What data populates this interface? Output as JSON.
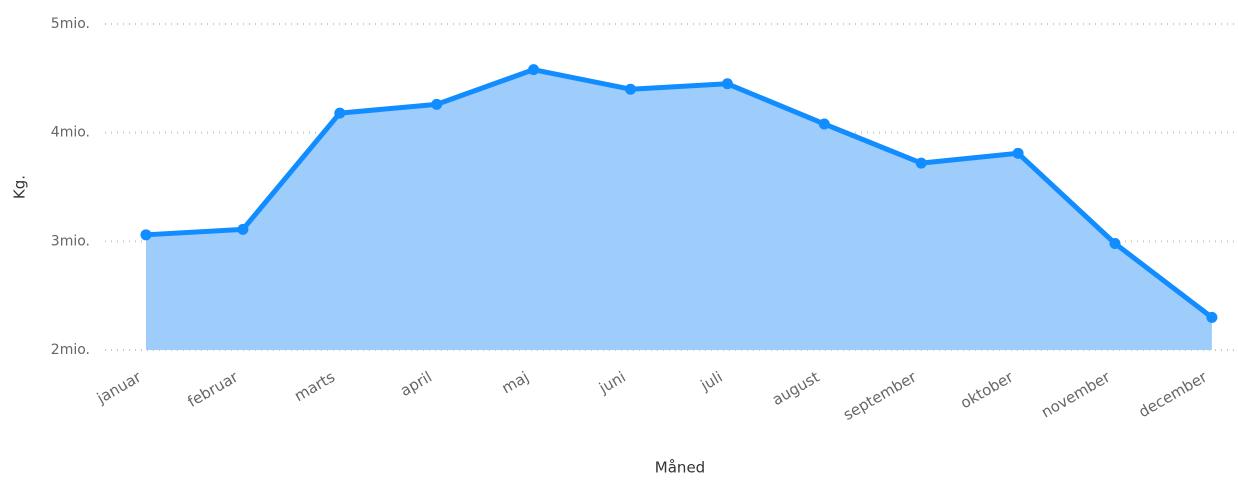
{
  "chart_data": {
    "type": "area",
    "x_label": "Måned",
    "y_label": "Kg.",
    "categories": [
      "januar",
      "februar",
      "marts",
      "april",
      "maj",
      "juni",
      "juli",
      "august",
      "september",
      "oktober",
      "november",
      "december"
    ],
    "series": [
      {
        "color": "#118dff",
        "fill": "#9fcdfb",
        "values": [
          3060000,
          3110000,
          4180000,
          4260000,
          4580000,
          4400000,
          4450000,
          4080000,
          3720000,
          3810000,
          2980000,
          2300000
        ]
      }
    ],
    "ylim": [
      2000000,
      5000000
    ],
    "yticks": [
      {
        "value": 2000000,
        "label": "2mio."
      },
      {
        "value": 3000000,
        "label": "3mio."
      },
      {
        "value": 4000000,
        "label": "4mio."
      },
      {
        "value": 5000000,
        "label": "5mio."
      }
    ],
    "grid": true
  }
}
